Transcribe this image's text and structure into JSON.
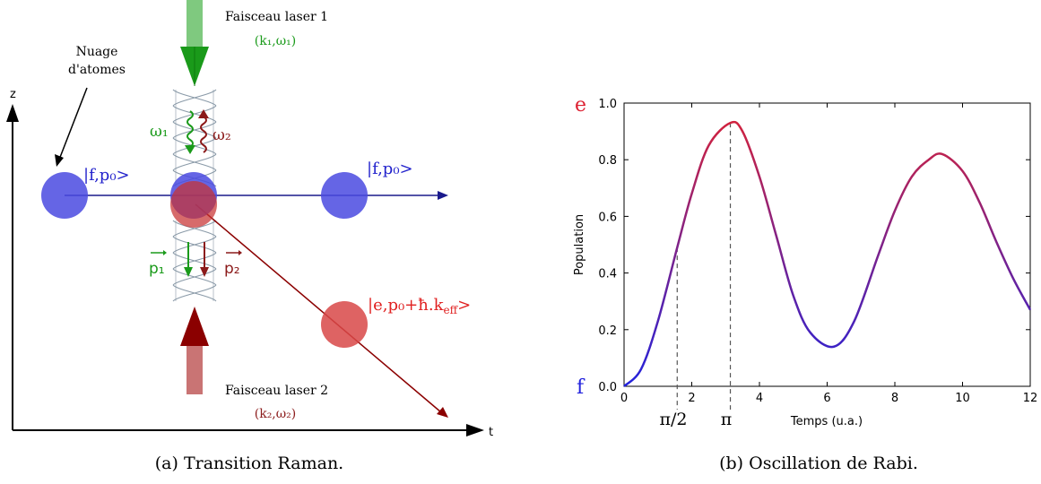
{
  "panel_a": {
    "caption": "(a) Transition Raman.",
    "axis_z": "z",
    "axis_t": "t",
    "cloud_label_1": "Nuage",
    "cloud_label_2": "d'atomes",
    "laser1_title": "Faisceau laser 1",
    "laser1_params": "(k₁,ω₁)",
    "laser2_title": "Faisceau laser 2",
    "laser2_params": "(k₂,ω₂)",
    "omega1": "ω₁",
    "omega2": "ω₂",
    "p1": "p₁",
    "p2": "p₂",
    "state_f_left": "|f,p₀>",
    "state_f_right": "|f,p₀>",
    "state_e": "|e,p₀+ħ.k",
    "state_e_sub": "eff",
    "state_e_end": ">",
    "colors": {
      "ground": "#4a4ae0",
      "excited": "#e05050",
      "laser1": "#1a9a1a",
      "laser2": "#8b0000",
      "blue_line": "#1a1a8c"
    }
  },
  "panel_b": {
    "caption": "(b) Oscillation de Rabi.",
    "label_e": "e",
    "label_f": "f",
    "label_pi2": "π/2",
    "label_pi": "π",
    "chart_data": {
      "type": "line",
      "xlabel": "Temps (u.a.)",
      "ylabel": "Population",
      "xlim": [
        0,
        12
      ],
      "ylim": [
        0,
        1.0
      ],
      "xticks": [
        0,
        2,
        4,
        6,
        8,
        10,
        12
      ],
      "yticks": [
        0.0,
        0.2,
        0.4,
        0.6,
        0.8,
        1.0
      ],
      "xtick_labels": [
        "0",
        "2",
        "4",
        "6",
        "8",
        "10",
        "12"
      ],
      "ytick_labels": [
        "0.0",
        "0.2",
        "0.4",
        "0.6",
        "0.8",
        "1.0"
      ],
      "x": [
        0,
        0.5,
        1.0,
        1.57,
        2.0,
        2.5,
        3.14,
        3.5,
        4.0,
        4.5,
        5.0,
        5.5,
        6.2,
        6.8,
        7.5,
        8.0,
        8.5,
        9.0,
        9.4,
        10.0,
        10.5,
        11.0,
        11.5,
        12.0
      ],
      "y": [
        0.0,
        0.06,
        0.23,
        0.49,
        0.68,
        0.85,
        0.93,
        0.9,
        0.74,
        0.53,
        0.32,
        0.19,
        0.14,
        0.23,
        0.46,
        0.62,
        0.74,
        0.8,
        0.82,
        0.76,
        0.65,
        0.51,
        0.38,
        0.27
      ],
      "markers_x": [
        1.57,
        3.14
      ],
      "grid": false,
      "color_bottom": "#2222dd",
      "color_top": "#dd2233"
    }
  }
}
